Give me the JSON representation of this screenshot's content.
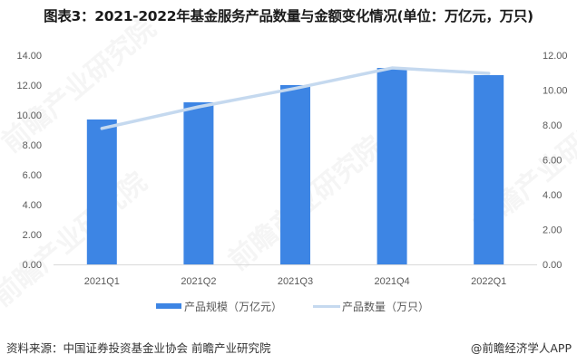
{
  "title": "图表3：2021-2022年基金服务产品数量与金额变化情况(单位：万亿元，万只)",
  "footer": {
    "source": "资料来源：中国证券投资基金业协会 前瞻产业研究院",
    "credit": "@前瞻经济学人APP"
  },
  "watermark": "前瞻产业研究院",
  "colors": {
    "bar": "#3d85e4",
    "line": "#c5d9ef",
    "axis": "#d9d9d9",
    "text": "#595959"
  },
  "legend": {
    "bar_label": "产品规模（万亿元）",
    "line_label": "产品数量（万只）"
  },
  "chart_data": {
    "type": "bar+line",
    "title": "图表3：2021-2022年基金服务产品数量与金额变化情况(单位：万亿元，万只)",
    "categories": [
      "2021Q1",
      "2021Q2",
      "2021Q3",
      "2021Q4",
      "2022Q1"
    ],
    "series": [
      {
        "name": "产品规模（万亿元）",
        "type": "bar",
        "axis": "left",
        "values": [
          9.7,
          10.85,
          12.0,
          13.15,
          12.67
        ]
      },
      {
        "name": "产品数量（万只）",
        "type": "line",
        "axis": "right",
        "values": [
          7.8,
          9.04,
          10.1,
          11.27,
          10.96
        ]
      }
    ],
    "y_left": {
      "ylim": [
        0,
        14
      ],
      "ticks": [
        "0.00",
        "2.00",
        "4.00",
        "6.00",
        "8.00",
        "10.00",
        "12.00",
        "14.00"
      ]
    },
    "y_right": {
      "ylim": [
        0,
        12
      ],
      "ticks": [
        "0.00",
        "2.00",
        "4.00",
        "6.00",
        "8.00",
        "10.00",
        "12.00"
      ]
    },
    "xlabel": "",
    "ylabel": "",
    "grid": false,
    "legend_position": "bottom"
  }
}
